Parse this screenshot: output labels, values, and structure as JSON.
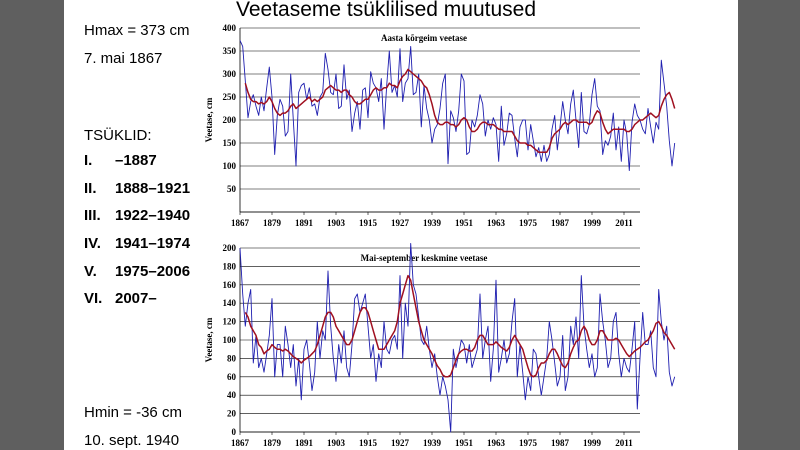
{
  "slide": {
    "title": "Veetaseme tsüklilised muutused",
    "hmax_label": "Hmax = 373 cm",
    "hmax_date": "7. mai 1867",
    "cycles_heading": "TSÜKLID:",
    "cycles": [
      {
        "num": "I.",
        "range": "–1887"
      },
      {
        "num": "II.",
        "range": "1888–1921"
      },
      {
        "num": "III.",
        "range": "1922–1940"
      },
      {
        "num": "IV.",
        "range": "1941–1974"
      },
      {
        "num": "V.",
        "range": "1975–2006"
      },
      {
        "num": "VI.",
        "range": "2007–"
      }
    ],
    "hmin_label": "Hmin = -36 cm",
    "hmin_date": "10. sept. 1940"
  },
  "colors": {
    "annual": "#1f1fb0",
    "smoothed": "#a01020",
    "background": "#5f5f5f"
  },
  "chart_data": [
    {
      "type": "line",
      "title": "Aasta kõrgeim veetase",
      "ylabel": "Veetase, cm",
      "xlabel": "",
      "ylim": [
        0,
        400
      ],
      "yticks": [
        0,
        50,
        100,
        150,
        200,
        250,
        300,
        350,
        400
      ],
      "ytick_labels": [
        "",
        "50",
        "100",
        "150",
        "200",
        "250",
        "300",
        "350",
        "400"
      ],
      "xlim": [
        1867,
        2017
      ],
      "xticks": [
        1867,
        1879,
        1891,
        1903,
        1915,
        1927,
        1939,
        1951,
        1963,
        1975,
        1987,
        1999,
        2011
      ],
      "grid": "horizontal",
      "series": [
        {
          "values": [
            373,
            360,
            285,
            205,
            240,
            255,
            230,
            210,
            250,
            220,
            270,
            315,
            250,
            125,
            210,
            245,
            230,
            165,
            175,
            300,
            200,
            100,
            260,
            275,
            280,
            245,
            270,
            230,
            235,
            210,
            250,
            260,
            345,
            310,
            260,
            255,
            300,
            225,
            230,
            320,
            245,
            265,
            175,
            215,
            240,
            180,
            265,
            270,
            205,
            305,
            280,
            270,
            240,
            290,
            180,
            275,
            350,
            260,
            275,
            250,
            355,
            240,
            280,
            290,
            360,
            255,
            260,
            300,
            185,
            275,
            225,
            200,
            150,
            180,
            190,
            225,
            280,
            300,
            105,
            220,
            205,
            175,
            220,
            300,
            285,
            125,
            130,
            200,
            185,
            210,
            255,
            235,
            165,
            200,
            180,
            205,
            190,
            110,
            230,
            145,
            170,
            215,
            210,
            160,
            120,
            185,
            200,
            200,
            135,
            190,
            155,
            120,
            140,
            110,
            145,
            110,
            125,
            180,
            210,
            135,
            185,
            240,
            200,
            170,
            235,
            265,
            200,
            140,
            260,
            175,
            170,
            190,
            255,
            290,
            230,
            220,
            125,
            155,
            145,
            165,
            215,
            135,
            185,
            110,
            200,
            170,
            90,
            195,
            235,
            210,
            200,
            180,
            170,
            225,
            185,
            150,
            195,
            180,
            330,
            280,
            230,
            155,
            100,
            150
          ]
        },
        {
          "values": [
            null,
            null,
            280,
            260,
            245,
            240,
            240,
            235,
            238,
            235,
            240,
            250,
            240,
            225,
            215,
            210,
            215,
            215,
            220,
            230,
            235,
            225,
            230,
            235,
            240,
            245,
            250,
            240,
            245,
            240,
            245,
            250,
            265,
            270,
            275,
            270,
            265,
            265,
            260,
            265,
            265,
            255,
            250,
            240,
            235,
            235,
            240,
            245,
            245,
            255,
            265,
            270,
            265,
            265,
            270,
            270,
            280,
            275,
            275,
            270,
            285,
            295,
            300,
            310,
            305,
            300,
            295,
            290,
            285,
            275,
            270,
            255,
            235,
            210,
            195,
            190,
            190,
            195,
            195,
            190,
            190,
            185,
            190,
            200,
            205,
            200,
            185,
            175,
            175,
            180,
            190,
            195,
            195,
            190,
            190,
            190,
            185,
            180,
            180,
            175,
            175,
            175,
            175,
            165,
            155,
            150,
            150,
            150,
            145,
            145,
            140,
            135,
            130,
            130,
            130,
            130,
            140,
            160,
            170,
            175,
            180,
            190,
            195,
            190,
            195,
            200,
            200,
            195,
            195,
            195,
            195,
            190,
            195,
            210,
            220,
            215,
            195,
            180,
            170,
            175,
            180,
            180,
            180,
            180,
            180,
            175,
            175,
            180,
            190,
            195,
            200,
            200,
            205,
            210,
            215,
            210,
            205,
            210,
            230,
            245,
            255,
            260,
            245,
            225
          ]
        }
      ]
    },
    {
      "type": "line",
      "title": "Mai-september keskmine veetase",
      "ylabel": "Veetase, cm",
      "xlabel": "",
      "ylim": [
        0,
        200
      ],
      "yticks": [
        0,
        20,
        40,
        60,
        80,
        100,
        120,
        140,
        160,
        180,
        200
      ],
      "ytick_labels": [
        "0",
        "20",
        "40",
        "60",
        "80",
        "100",
        "120",
        "140",
        "160",
        "180",
        "200"
      ],
      "xlim": [
        1867,
        2017
      ],
      "xticks": [
        1867,
        1879,
        1891,
        1903,
        1915,
        1927,
        1939,
        1951,
        1963,
        1975,
        1987,
        1999,
        2011
      ],
      "grid": "horizontal",
      "series": [
        {
          "values": [
            200,
            150,
            115,
            140,
            155,
            75,
            105,
            70,
            80,
            65,
            85,
            105,
            145,
            60,
            95,
            95,
            60,
            115,
            95,
            70,
            95,
            50,
            80,
            35,
            90,
            100,
            75,
            45,
            65,
            120,
            80,
            110,
            100,
            175,
            115,
            80,
            55,
            95,
            75,
            110,
            70,
            60,
            95,
            145,
            150,
            130,
            140,
            150,
            115,
            80,
            95,
            55,
            85,
            70,
            120,
            90,
            85,
            100,
            105,
            90,
            170,
            80,
            140,
            115,
            205,
            160,
            150,
            125,
            100,
            95,
            115,
            90,
            70,
            85,
            60,
            40,
            60,
            50,
            35,
            -36,
            90,
            70,
            85,
            100,
            95,
            75,
            95,
            70,
            80,
            90,
            150,
            80,
            100,
            115,
            55,
            90,
            165,
            65,
            80,
            100,
            75,
            85,
            120,
            145,
            60,
            95,
            65,
            35,
            60,
            45,
            90,
            85,
            60,
            40,
            60,
            80,
            120,
            100,
            75,
            50,
            60,
            105,
            45,
            60,
            115,
            95,
            125,
            80,
            170,
            115,
            90,
            70,
            85,
            60,
            70,
            150,
            120,
            100,
            70,
            80,
            120,
            130,
            85,
            60,
            80,
            70,
            65,
            90,
            120,
            25,
            80,
            130,
            95,
            95,
            110,
            70,
            60,
            155,
            120,
            100,
            115,
            65,
            50,
            60
          ]
        },
        {
          "values": [
            null,
            null,
            130,
            125,
            115,
            110,
            105,
            95,
            92,
            85,
            88,
            90,
            95,
            92,
            90,
            90,
            88,
            90,
            88,
            85,
            82,
            80,
            78,
            75,
            78,
            80,
            82,
            85,
            88,
            95,
            105,
            115,
            125,
            130,
            130,
            125,
            115,
            110,
            105,
            100,
            95,
            95,
            100,
            110,
            120,
            130,
            135,
            135,
            130,
            120,
            110,
            100,
            90,
            90,
            90,
            95,
            100,
            105,
            110,
            120,
            140,
            150,
            160,
            170,
            165,
            150,
            135,
            120,
            110,
            100,
            95,
            90,
            85,
            78,
            72,
            68,
            62,
            60,
            60,
            62,
            70,
            78,
            85,
            88,
            90,
            90,
            88,
            88,
            92,
            100,
            105,
            105,
            100,
            95,
            95,
            95,
            98,
            95,
            92,
            90,
            88,
            92,
            100,
            105,
            100,
            95,
            90,
            80,
            70,
            62,
            60,
            62,
            70,
            75,
            75,
            78,
            85,
            90,
            90,
            85,
            78,
            72,
            70,
            75,
            85,
            92,
            98,
            100,
            110,
            115,
            110,
            100,
            95,
            95,
            100,
            110,
            110,
            105,
            100,
            100,
            100,
            102,
            100,
            95,
            90,
            85,
            82,
            85,
            88,
            90,
            92,
            95,
            98,
            100,
            105,
            110,
            118,
            120,
            115,
            108,
            105,
            100,
            95,
            90
          ]
        }
      ]
    }
  ]
}
